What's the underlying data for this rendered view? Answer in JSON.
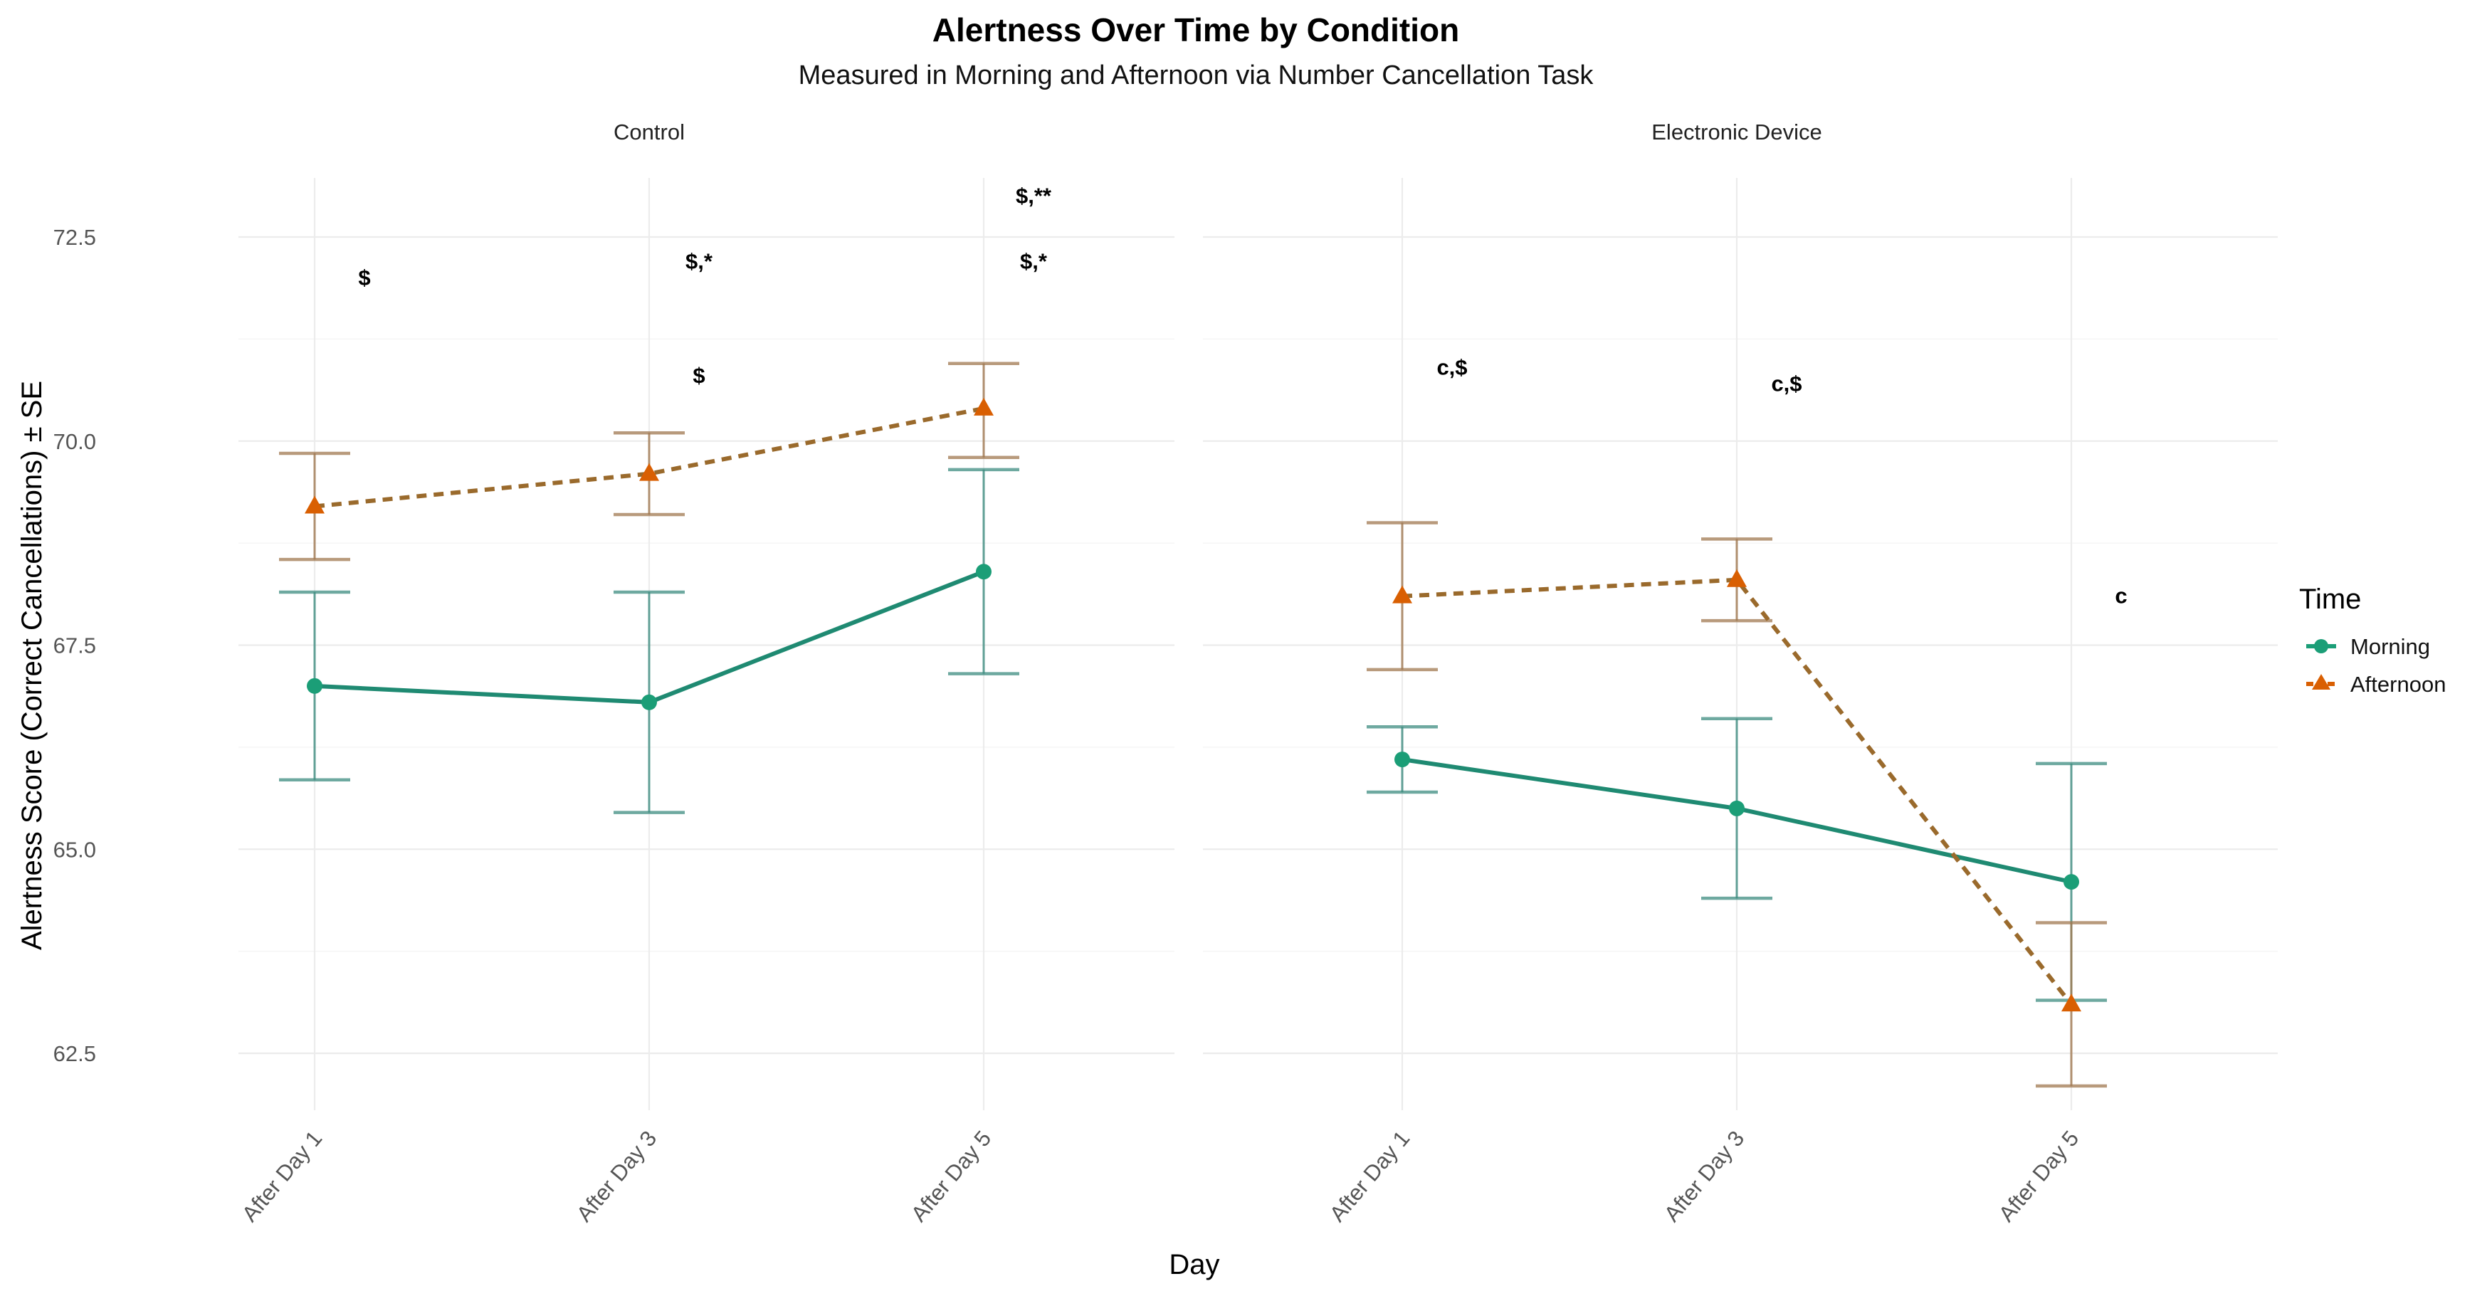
{
  "chart_data": {
    "type": "line",
    "title": "Alertness Over Time by Condition",
    "subtitle": "Measured in Morning and Afternoon via Number Cancellation Task",
    "xlabel": "Day",
    "ylabel": "Alertness Score (Correct Cancellations) ± SE",
    "categories": [
      "After Day 1",
      "After Day 3",
      "After Day 5"
    ],
    "ylim": [
      61.3,
      73.6
    ],
    "yticks": [
      62.5,
      65.0,
      67.5,
      70.0,
      72.5
    ],
    "ytick_labels": [
      "62.5",
      "65.0",
      "67.5",
      "70.0",
      "72.5"
    ],
    "grid": true,
    "legend": {
      "title": "Time",
      "placement": "right",
      "entries": [
        {
          "name": "Morning",
          "color": "#1b9e77",
          "marker": "circle",
          "linestyle": "solid"
        },
        {
          "name": "Afternoon",
          "color": "#d95f02",
          "marker": "triangle",
          "linestyle": "dashed"
        }
      ]
    },
    "panels": [
      {
        "name": "Control",
        "series": [
          {
            "name": "Morning",
            "values": [
              67.0,
              66.8,
              68.4
            ],
            "lower": [
              65.85,
              65.45,
              67.15
            ],
            "upper": [
              68.15,
              68.15,
              69.65
            ]
          },
          {
            "name": "Afternoon",
            "values": [
              69.2,
              69.6,
              70.4
            ],
            "lower": [
              68.55,
              69.1,
              69.8
            ],
            "upper": [
              69.85,
              70.1,
              70.95
            ]
          }
        ],
        "annotations": [
          {
            "category": "After Day 1",
            "y": 72.0,
            "text": "$"
          },
          {
            "category": "After Day 3",
            "y": 72.2,
            "text": "$,*"
          },
          {
            "category": "After Day 3",
            "y": 70.8,
            "text": "$"
          },
          {
            "category": "After Day 5",
            "y": 73.0,
            "text": "$,**"
          },
          {
            "category": "After Day 5",
            "y": 72.2,
            "text": "$,*"
          }
        ]
      },
      {
        "name": "Electronic Device",
        "series": [
          {
            "name": "Morning",
            "values": [
              66.1,
              65.5,
              64.6
            ],
            "lower": [
              65.7,
              64.4,
              63.15
            ],
            "upper": [
              66.5,
              66.6,
              66.05
            ]
          },
          {
            "name": "Afternoon",
            "values": [
              68.1,
              68.3,
              63.1
            ],
            "lower": [
              67.2,
              67.8,
              62.1
            ],
            "upper": [
              69.0,
              68.8,
              64.1
            ]
          }
        ],
        "annotations": [
          {
            "category": "After Day 1",
            "y": 70.9,
            "text": "c,$"
          },
          {
            "category": "After Day 3",
            "y": 70.7,
            "text": "c,$"
          },
          {
            "category": "After Day 5",
            "y": 68.1,
            "text": "c"
          }
        ]
      }
    ]
  }
}
